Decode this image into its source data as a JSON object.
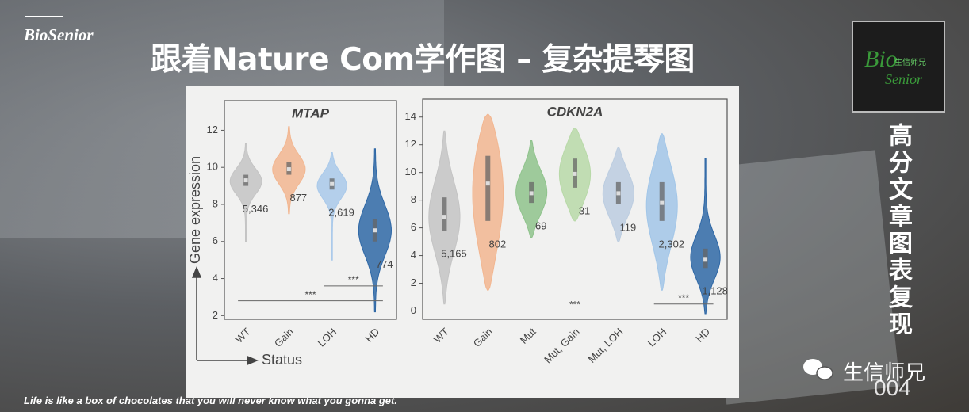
{
  "header": {
    "brand": "BioSenior",
    "title": "跟着Nature Com学作图 – 复杂提琴图"
  },
  "sidebar": {
    "logo_top": "Bio",
    "logo_cn": "生信师兄",
    "logo_bottom": "Senior",
    "vertical_text": "高分文章图表复现"
  },
  "footer": {
    "quote": "Life is like a box of chocolates that you will never know what you gonna get.",
    "watermark": "生信师兄",
    "page": "004"
  },
  "chart_data": [
    {
      "type": "violin",
      "title": "MTAP",
      "y_label": "Gene expression",
      "x_label": "Status",
      "categories": [
        "WT",
        "Gain",
        "LOH",
        "HD"
      ],
      "colors": [
        "#c4c4c4",
        "#f2b690",
        "#a9c9ea",
        "#2f68a6"
      ],
      "median": [
        9.3,
        9.9,
        9.1,
        6.6
      ],
      "q1": [
        9.0,
        9.6,
        8.8,
        6.0
      ],
      "q3": [
        9.6,
        10.3,
        9.4,
        7.2
      ],
      "min": [
        6.0,
        7.5,
        5.0,
        2.2
      ],
      "max": [
        11.3,
        12.2,
        10.8,
        11.0
      ],
      "counts": {
        "values": [
          5346,
          877,
          2619,
          774
        ],
        "value_labels": [
          "5,346",
          "877",
          "2,619",
          "774"
        ]
      },
      "significance": [
        {
          "label": "***",
          "y": 2.8,
          "span": [
            "WT",
            "HD"
          ]
        },
        {
          "label": "***",
          "y": 3.6,
          "span": [
            "LOH",
            "HD"
          ]
        }
      ],
      "ylim": [
        1.8,
        13.6
      ],
      "yticks": [
        2,
        4,
        6,
        8,
        10,
        12
      ]
    },
    {
      "type": "violin",
      "title": "CDKN2A",
      "categories": [
        "WT",
        "Gain",
        "Mut",
        "Mut, Gain",
        "Mut, LOH",
        "LOH",
        "HD"
      ],
      "colors": [
        "#c4c4c4",
        "#f2b690",
        "#8fc38c",
        "#b8d9a8",
        "#bccde0",
        "#a2c6e8",
        "#2f68a6"
      ],
      "median": [
        6.8,
        9.2,
        8.5,
        9.9,
        8.5,
        7.8,
        3.7
      ],
      "q1": [
        5.8,
        6.5,
        7.8,
        8.9,
        7.7,
        6.5,
        3.1
      ],
      "q3": [
        8.2,
        11.2,
        9.3,
        11.0,
        9.3,
        9.3,
        4.5
      ],
      "min": [
        0.5,
        1.5,
        5.3,
        6.5,
        5.0,
        1.5,
        -0.2
      ],
      "max": [
        13.0,
        14.2,
        12.3,
        13.2,
        11.8,
        12.8,
        11.0
      ],
      "counts": {
        "values": [
          5165,
          802,
          69,
          31,
          119,
          2302,
          1128
        ],
        "value_labels": [
          "5,165",
          "802",
          "69",
          "31",
          "119",
          "2,302",
          "1,128"
        ]
      },
      "significance": [
        {
          "label": "***",
          "y": 0.0,
          "span": [
            "WT",
            "HD"
          ]
        },
        {
          "label": "***",
          "y": 0.5,
          "span": [
            "LOH",
            "HD"
          ]
        }
      ],
      "ylim": [
        -0.6,
        15.3
      ],
      "yticks": [
        0,
        2,
        4,
        6,
        8,
        10,
        12,
        14
      ]
    }
  ]
}
